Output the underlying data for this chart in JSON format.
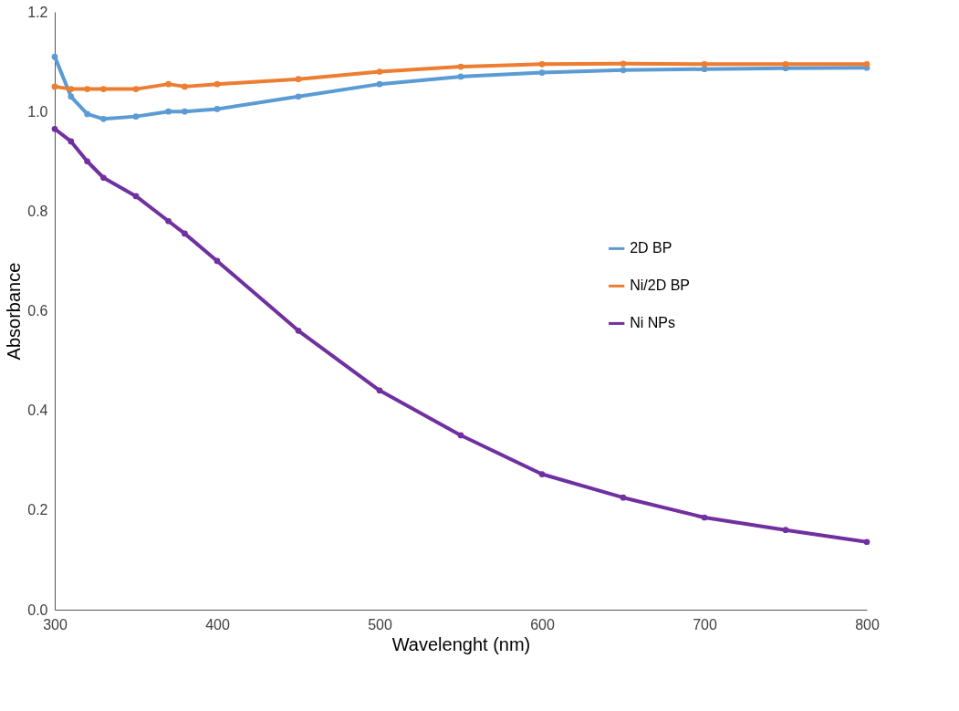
{
  "chart_data": {
    "type": "line",
    "xlabel": "Wavelenght (nm)",
    "ylabel": "Absorbance",
    "xlim": [
      300,
      800
    ],
    "xticks": [
      300,
      400,
      500,
      600,
      700,
      800
    ],
    "ylim": [
      0,
      1.2
    ],
    "yticks": [
      {
        "value": 0,
        "label": "0.0"
      },
      0.2,
      0.4,
      0.6,
      0.8,
      {
        "value": 1,
        "label": "1.0"
      },
      1.2
    ],
    "grid": false,
    "legend": "right",
    "marker": "circle",
    "x": [
      300,
      310,
      320,
      330,
      350,
      370,
      380,
      400,
      450,
      500,
      550,
      600,
      650,
      700,
      750,
      800
    ],
    "series": [
      {
        "name": "2D BP",
        "color": "#5b9bd5",
        "values": [
          1.11,
          1.03,
          0.995,
          0.985,
          0.99,
          1.0,
          1.0,
          1.005,
          1.03,
          1.055,
          1.07,
          1.078,
          1.083,
          1.085,
          1.087,
          1.088
        ]
      },
      {
        "name": "Ni/2D BP",
        "color": "#ed7d31",
        "values": [
          1.05,
          1.045,
          1.045,
          1.045,
          1.045,
          1.055,
          1.05,
          1.055,
          1.065,
          1.08,
          1.09,
          1.095,
          1.096,
          1.095,
          1.095,
          1.095
        ]
      },
      {
        "name": "Ni NPs",
        "color": "#7030a0",
        "values": [
          0.965,
          0.94,
          0.9,
          0.867,
          0.83,
          0.78,
          0.755,
          0.7,
          0.56,
          0.44,
          0.35,
          0.272,
          0.225,
          0.185,
          0.16,
          0.136
        ]
      }
    ]
  }
}
